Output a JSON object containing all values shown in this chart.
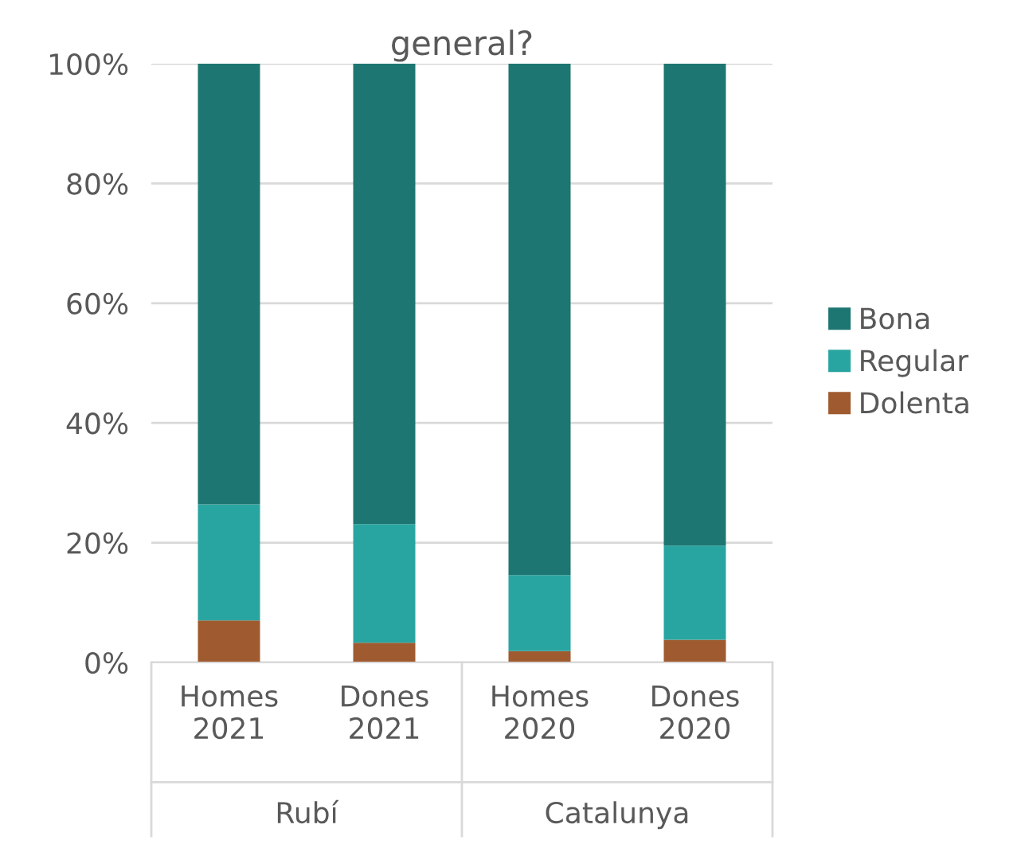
{
  "chart_data": {
    "type": "bar",
    "title": "general?",
    "stacked": true,
    "categories": [
      "Homes\n2021",
      "Dones\n2021",
      "Homes\n2020",
      "Dones\n2020"
    ],
    "series": [
      {
        "name": "Dolenta",
        "color": "#a05a2f",
        "values": [
          7.0,
          3.3,
          1.9,
          3.8
        ]
      },
      {
        "name": "Regular",
        "color": "#29a5a1",
        "values": [
          19.4,
          19.8,
          12.7,
          15.7
        ]
      },
      {
        "name": "Bona",
        "color": "#1e7672",
        "values": [
          73.6,
          76.9,
          85.4,
          80.5
        ]
      }
    ],
    "annotations": [
      "Rubí",
      "Catalunya"
    ],
    "ylim": [
      0,
      100
    ],
    "yticks": [
      {
        "value": 0,
        "label": "0%"
      },
      {
        "value": 20,
        "label": "20%"
      },
      {
        "value": 40,
        "label": "40%"
      },
      {
        "value": 60,
        "label": "60%"
      },
      {
        "value": 80,
        "label": "80%"
      },
      {
        "value": 100,
        "label": "100%"
      }
    ],
    "grid": "y",
    "legend": "right"
  }
}
